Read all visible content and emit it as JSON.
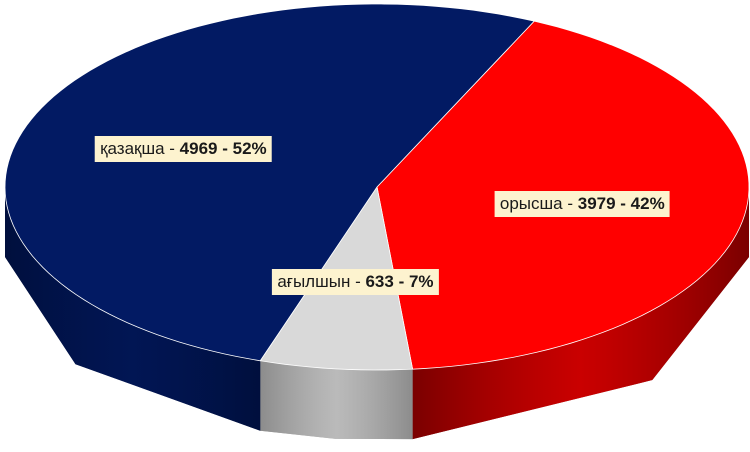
{
  "chart_data": {
    "type": "pie3d",
    "categories": [
      "қазақша",
      "орысша",
      "ағылшын"
    ],
    "values": [
      4969,
      3979,
      633
    ],
    "percentages": [
      52,
      42,
      7
    ],
    "percent_labels": [
      "52%",
      "42%",
      "7%"
    ],
    "separator": " - ",
    "colors": [
      "#021a63",
      "#ff0000",
      "#d9d9d9"
    ],
    "side_colors": [
      "#000f3d",
      "#7a0000",
      "#8c8c8c"
    ]
  }
}
